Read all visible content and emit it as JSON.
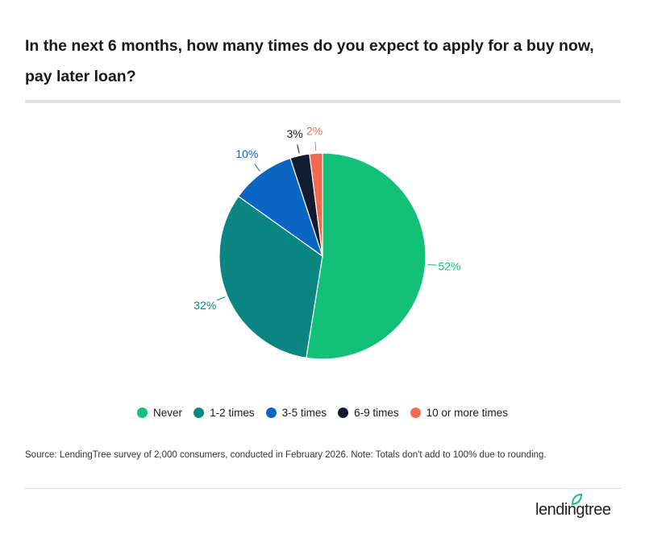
{
  "title": "In the next 6 months, how many times do you expect to apply for a buy now, pay later loan?",
  "source": "Source: LendingTree survey of 2,000 consumers, conducted in February 2026. Note: Totals don't add to 100% due to rounding.",
  "logo": "lendingtree",
  "chart_data": {
    "type": "pie",
    "categories": [
      "Never",
      "1-2 times",
      "3-5 times",
      "6-9 times",
      "10 or more times"
    ],
    "values": [
      52,
      32,
      10,
      3,
      2
    ],
    "labels": [
      "52%",
      "32%",
      "10%",
      "3%",
      "2%"
    ],
    "colors": [
      "#12c177",
      "#0b8582",
      "#0a66c2",
      "#111c2e",
      "#f26a4f"
    ],
    "legend_position": "bottom"
  }
}
